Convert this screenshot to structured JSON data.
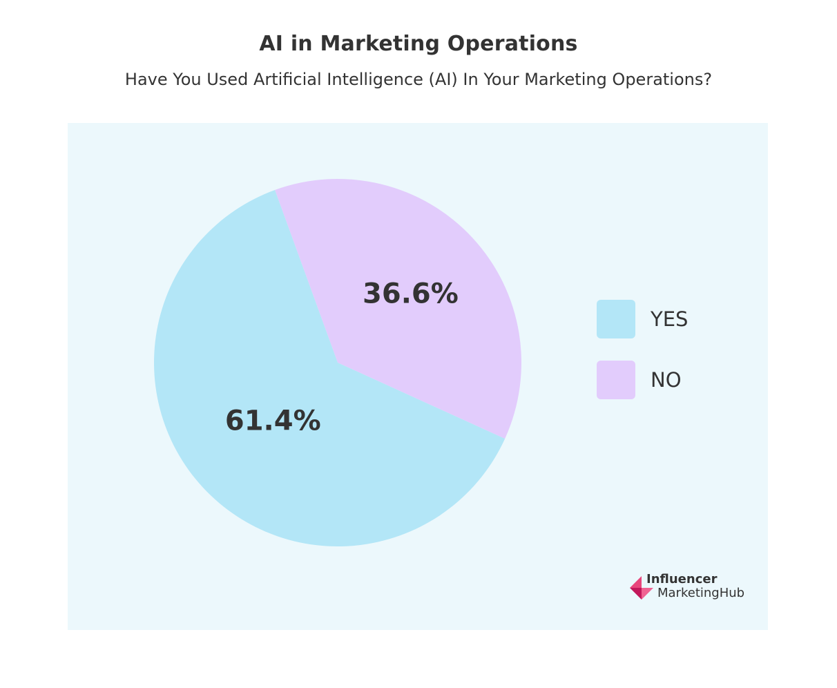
{
  "chart_data": {
    "type": "pie",
    "title": "AI in Marketing Operations",
    "subtitle": "Have You Used Artificial Intelligence (AI) In Your Marketing Operations?",
    "slices": [
      {
        "label": "YES",
        "value": 61.4,
        "display": "61.4%",
        "color": "#b3e6f7"
      },
      {
        "label": "NO",
        "value": 36.6,
        "display": "36.6%",
        "color": "#e2ccfc"
      }
    ],
    "legend_position": "right"
  },
  "colors": {
    "panel_background": "#ecf8fc",
    "text": "#333333",
    "logo_accent": "#e8467c"
  },
  "branding": {
    "line1": "Influencer",
    "line2": "MarketingHub",
    "icon": "influencer-marketing-hub-logo-icon"
  }
}
